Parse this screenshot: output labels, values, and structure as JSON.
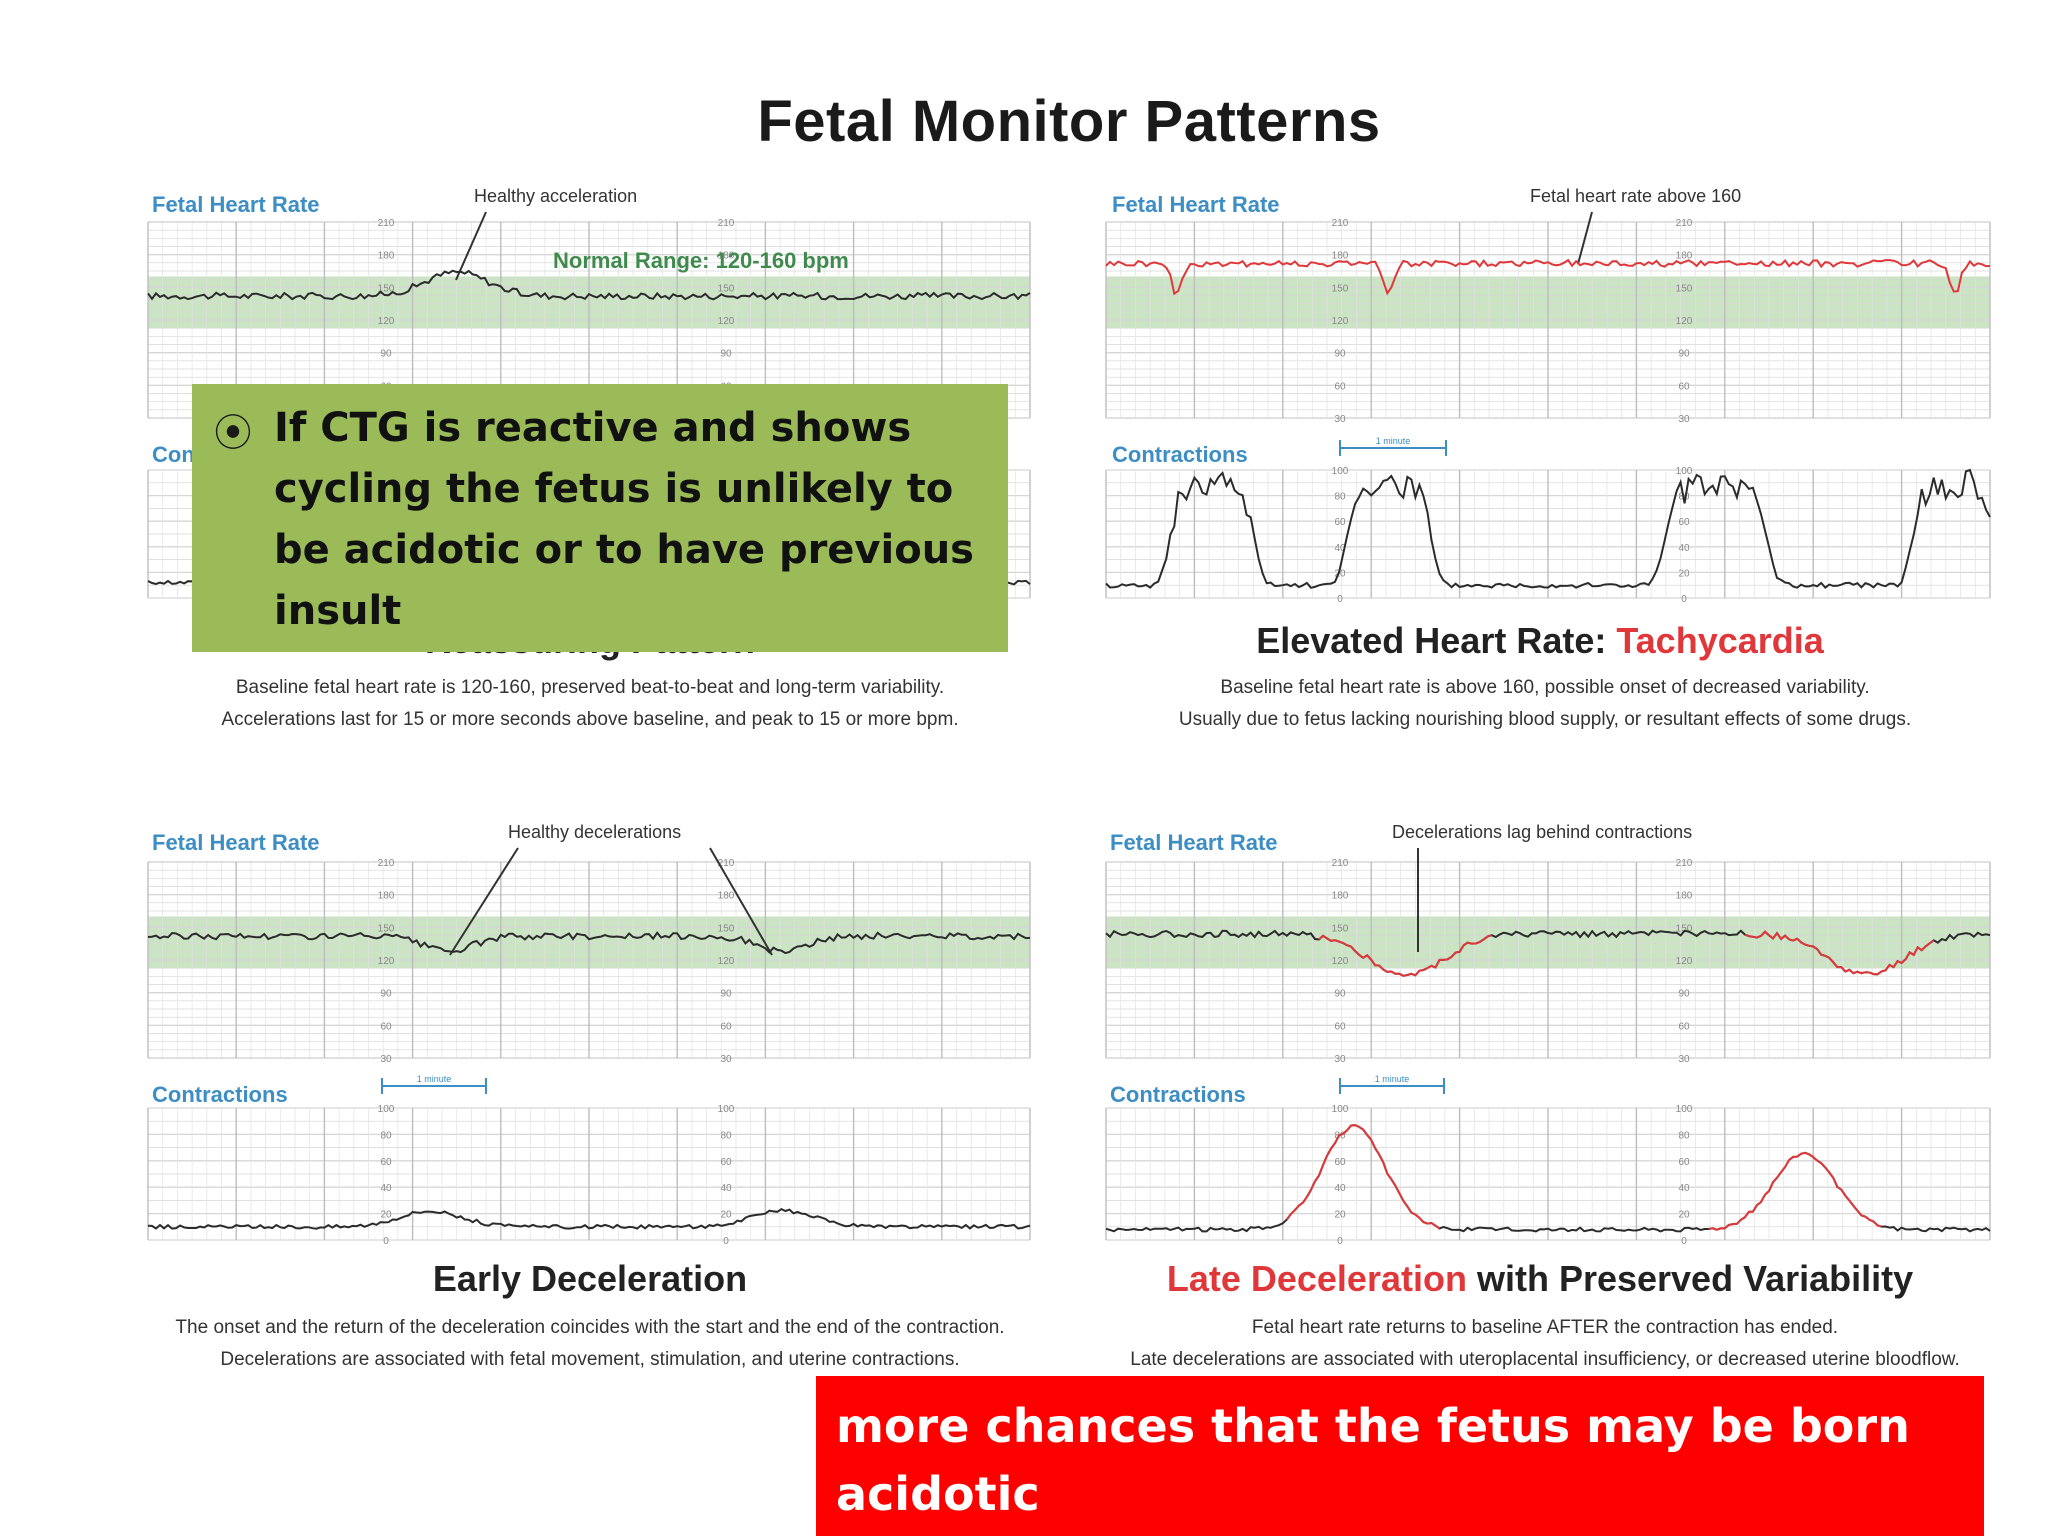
{
  "slide_title": "Fetal Monitor Patterns",
  "panels": [
    {
      "fhr_label": "Fetal Heart Rate",
      "annotation": "Healthy acceleration",
      "range_label": "Normal Range: 120-160 bpm",
      "contractions_label": "Contractions",
      "caption_main": "Reassuring Pattern",
      "caption_red": "",
      "desc_line1": "Baseline fetal heart rate is 120-160, preserved beat-to-beat and long-term variability.",
      "desc_line2": "Accelerations last for 15 or more seconds above baseline, and peak to 15 or more bpm."
    },
    {
      "fhr_label": "Fetal Heart Rate",
      "annotation": "Fetal heart rate above 160",
      "contractions_label": "Contractions",
      "minute_label": "1 minute",
      "caption_main": "Elevated Heart Rate: ",
      "caption_red": "Tachycardia",
      "desc_line1": "Baseline fetal heart rate is above 160, possible onset of decreased variability.",
      "desc_line2": "Usually due to fetus lacking nourishing blood supply, or resultant effects of some drugs."
    },
    {
      "fhr_label": "Fetal Heart Rate",
      "annotation": "Healthy decelerations",
      "contractions_label": "Contractions",
      "minute_label": "1 minute",
      "caption_main": "Early Deceleration",
      "caption_red": "",
      "desc_line1": "The onset and the return of the deceleration coincides with the start and the end of the contraction.",
      "desc_line2": "Decelerations are associated with fetal movement, stimulation, and uterine contractions."
    },
    {
      "fhr_label": "Fetal Heart Rate",
      "annotation": "Decelerations lag behind contractions",
      "contractions_label": "Contractions",
      "minute_label": "1 minute",
      "caption_main": " with Preserved Variability",
      "caption_red": "Late Deceleration",
      "desc_line1": "Fetal heart rate returns to baseline AFTER the contraction has ended.",
      "desc_line2": "Late decelerations are associated with uteroplacental insufficiency, or decreased uterine bloodflow."
    }
  ],
  "fhr_ticks": [
    "210",
    "180",
    "150",
    "120",
    "90",
    "60",
    "30"
  ],
  "uc_ticks": [
    "100",
    "80",
    "60",
    "40",
    "20",
    "0"
  ],
  "green_box": {
    "bullet": "⦿",
    "text": "If CTG is reactive and shows cycling the fetus is unlikely to be acidotic or to have previous insult"
  },
  "red_box": {
    "text": "more chances that the fetus may be born acidotic"
  },
  "colors": {
    "label_blue": "#3c8ec4",
    "normal_band": "#b9dcb0",
    "trace_dark": "#2b2b2b",
    "trace_red": "#e0373a",
    "green_box": "#9bbb59",
    "red_box": "#ff0000"
  }
}
